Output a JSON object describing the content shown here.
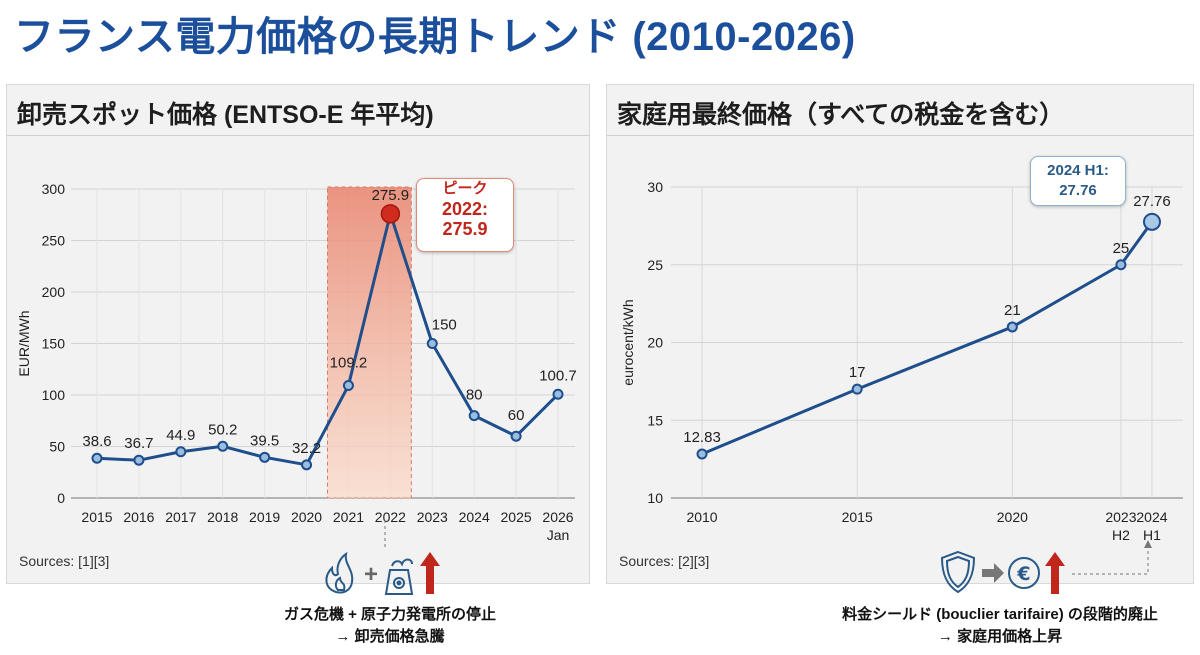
{
  "title": "フランス電力価格の長期トレンド (2010-2026)",
  "left_panel": {
    "title": "卸売スポット価格 (ENTSO-E 年平均)",
    "sources": "Sources: [1][3]",
    "peak_callout": {
      "line1": "ピーク",
      "line2": "2022:",
      "line3": "275.9"
    },
    "note_line1": "ガス危機 + 原子力発電所の停止",
    "note_line2": "→ 卸売価格急騰"
  },
  "right_panel": {
    "title": "家庭用最終価格（すべての税金を含む）",
    "sources": "Sources: [2][3]",
    "callout": {
      "line1": "2024 H1:",
      "line2": "27.76"
    },
    "note_line1": "料金シールド (bouclier tarifaire) の段階的廃止",
    "note_line2": "→ 家庭用価格上昇"
  },
  "colors": {
    "line": "#1f4e8c",
    "marker": "#9bbde0",
    "peak": "#d12b1f",
    "band": "#f08a6a",
    "title": "#1b4f9c"
  },
  "chart_data": [
    {
      "type": "line",
      "title": "卸売スポット価格 (ENTSO-E 年平均)",
      "xlabel": "",
      "ylabel": "EUR/MWh",
      "categories": [
        "2015",
        "2016",
        "2017",
        "2018",
        "2019",
        "2020",
        "2021",
        "2022",
        "2023",
        "2024",
        "2025",
        "2026"
      ],
      "category_sublabels": [
        "",
        "",
        "",
        "",
        "",
        "",
        "",
        "",
        "",
        "",
        "",
        "Jan"
      ],
      "values": [
        38.6,
        36.7,
        44.9,
        50.2,
        39.5,
        32.2,
        109.2,
        275.9,
        150,
        80,
        60,
        100.7
      ],
      "labels": [
        "38.6",
        "36.7",
        "44.9",
        "50.2",
        "39.5",
        "32.2",
        "109.2",
        "275.9",
        "150",
        "80",
        "60",
        "100.7"
      ],
      "ylim": [
        0,
        300
      ],
      "yticks": [
        0,
        50,
        100,
        150,
        200,
        250,
        300
      ],
      "highlight_range": [
        "2021",
        "2022"
      ],
      "peak_index": 7,
      "grid": true
    },
    {
      "type": "line",
      "title": "家庭用最終価格（すべての税金を含む）",
      "xlabel": "",
      "ylabel": "eurocent/kWh",
      "x": [
        2010,
        2015,
        2020,
        2023.5,
        2024.5
      ],
      "x_labels": [
        "2010",
        "2015",
        "2020",
        "2023",
        "2024"
      ],
      "x_sublabels": [
        "",
        "",
        "",
        "H2",
        "H1"
      ],
      "values": [
        12.83,
        17,
        21,
        25,
        27.76
      ],
      "labels": [
        "12.83",
        "17",
        "21",
        "25",
        "27.76"
      ],
      "xlim": [
        2009,
        2025.5
      ],
      "ylim": [
        10,
        30
      ],
      "yticks": [
        10,
        15,
        20,
        25,
        30
      ],
      "grid": true
    }
  ]
}
